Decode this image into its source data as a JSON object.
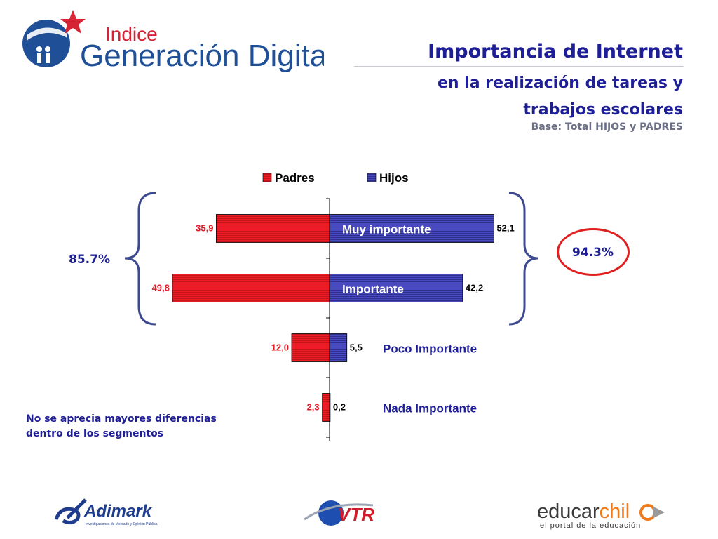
{
  "header": {
    "logo": {
      "top_line": "Indice",
      "main_text": "Generación Digital"
    },
    "title": "Importancia de Internet",
    "subtitle_line1": "en la realización de tareas y",
    "subtitle_line2": "trabajos escolares",
    "base": "Base: Total HIJOS y PADRES"
  },
  "colors": {
    "padres": "#ee1c24",
    "hijos": "#4343b8",
    "title": "#1e1e96",
    "bracket": "#3d4a8f",
    "ring": "#e02020"
  },
  "chart_data": {
    "type": "bar",
    "orientation": "horizontal-diverging",
    "categories": [
      "Muy importante",
      "Importante",
      "Poco Importante",
      "Nada Importante"
    ],
    "category_label_display": [
      "Muy importante",
      "Importante",
      "Poco Importante",
      "Nada Importante"
    ],
    "series": [
      {
        "name": "Padres",
        "values": [
          35.9,
          49.8,
          12.0,
          2.3
        ],
        "labels": [
          "35,9",
          "49,8",
          "12,0",
          "2,3"
        ]
      },
      {
        "name": "Hijos",
        "values": [
          52.1,
          42.2,
          5.5,
          0.2
        ],
        "labels": [
          "52,1",
          "42,2",
          "5,5",
          "0,2"
        ]
      }
    ],
    "legend": "top-center",
    "grid": false,
    "title": "",
    "xlabel": "",
    "ylabel": ""
  },
  "annotations": {
    "padres_total": "85.7%",
    "hijos_total": "94.3%",
    "note_line1": "No se aprecia mayores diferencias",
    "note_line2": "dentro de los segmentos"
  },
  "footer": {
    "adimark": {
      "name": "Adimark",
      "tagline": "Investigaciones de Mercado y Opinión Pública"
    },
    "vtr": {
      "name": "VTR"
    },
    "educarchile": {
      "part1": "educar",
      "part2": "chil",
      "tagline": "el portal de la educación"
    }
  }
}
